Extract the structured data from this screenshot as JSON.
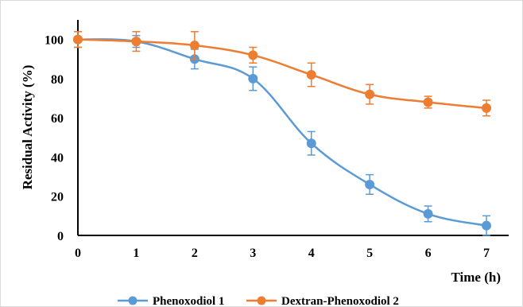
{
  "chart_data": {
    "type": "line",
    "title": "",
    "xlabel": "Time (h)",
    "ylabel": "Residual Activity (%)",
    "x": [
      0,
      1,
      2,
      3,
      4,
      5,
      6,
      7
    ],
    "xlim": [
      0,
      7
    ],
    "ylim": [
      0,
      110
    ],
    "yticks": [
      0,
      20,
      40,
      60,
      80,
      100
    ],
    "grid": false,
    "legend_position": "bottom",
    "series": [
      {
        "name": "Phenoxodiol 1",
        "color": "#5b9bd5",
        "values": [
          100,
          99,
          90,
          80,
          47,
          26,
          11,
          5
        ],
        "error": [
          4,
          3,
          5,
          6,
          6,
          5,
          4,
          5
        ]
      },
      {
        "name": "Dextran-Phenoxodiol 2",
        "color": "#ed7d31",
        "values": [
          100,
          99,
          97,
          92,
          82,
          72,
          68,
          65
        ],
        "error": [
          4,
          5,
          7,
          4,
          6,
          5,
          3,
          4
        ]
      }
    ]
  }
}
